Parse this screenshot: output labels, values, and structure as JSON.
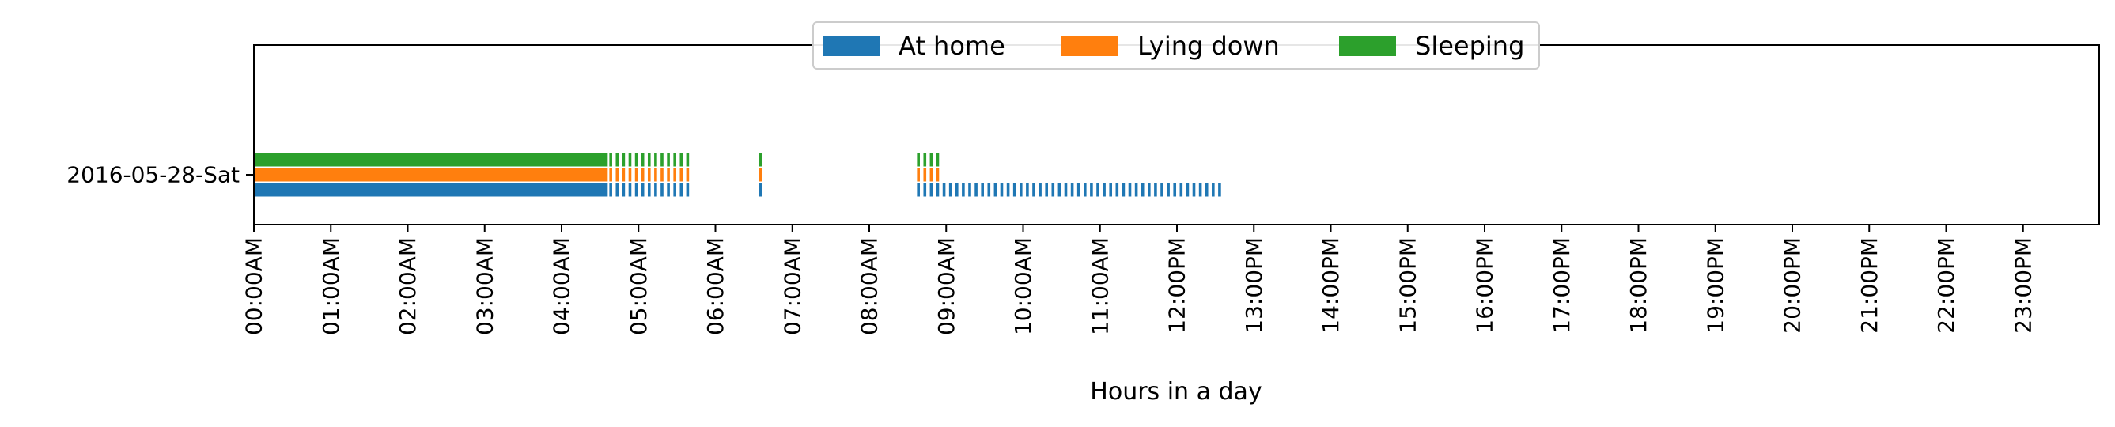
{
  "chart_data": {
    "type": "timeline",
    "title": "",
    "xlabel": "Hours in a day",
    "ylabel": "",
    "xlim": [
      0,
      24
    ],
    "x_tick_labels": [
      "00:00AM",
      "01:00AM",
      "02:00AM",
      "03:00AM",
      "04:00AM",
      "05:00AM",
      "06:00AM",
      "07:00AM",
      "08:00AM",
      "09:00AM",
      "10:00AM",
      "11:00AM",
      "12:00PM",
      "13:00PM",
      "14:00PM",
      "15:00PM",
      "16:00PM",
      "17:00PM",
      "18:00PM",
      "19:00PM",
      "20:00PM",
      "21:00PM",
      "22:00PM",
      "23:00PM"
    ],
    "categories": [
      "2016-05-28-Sat"
    ],
    "legend_position": "top-center",
    "grid": false,
    "series": [
      {
        "name": "At home",
        "color": "#1f77b4",
        "solid_intervals": [
          [
            0,
            4.6
          ]
        ],
        "sampled_intervals": [
          [
            4.6,
            5.67
          ],
          [
            6.55,
            6.65
          ],
          [
            8.6,
            12.6
          ]
        ]
      },
      {
        "name": "Lying down",
        "color": "#ff7f0e",
        "solid_intervals": [
          [
            0,
            4.6
          ]
        ],
        "sampled_intervals": [
          [
            4.6,
            5.67
          ],
          [
            6.55,
            6.65
          ],
          [
            8.6,
            8.93
          ]
        ]
      },
      {
        "name": "Sleeping",
        "color": "#2ca02c",
        "solid_intervals": [
          [
            0,
            4.6
          ]
        ],
        "sampled_intervals": [
          [
            4.6,
            5.67
          ],
          [
            6.55,
            6.65
          ],
          [
            8.6,
            8.93
          ]
        ]
      }
    ]
  }
}
